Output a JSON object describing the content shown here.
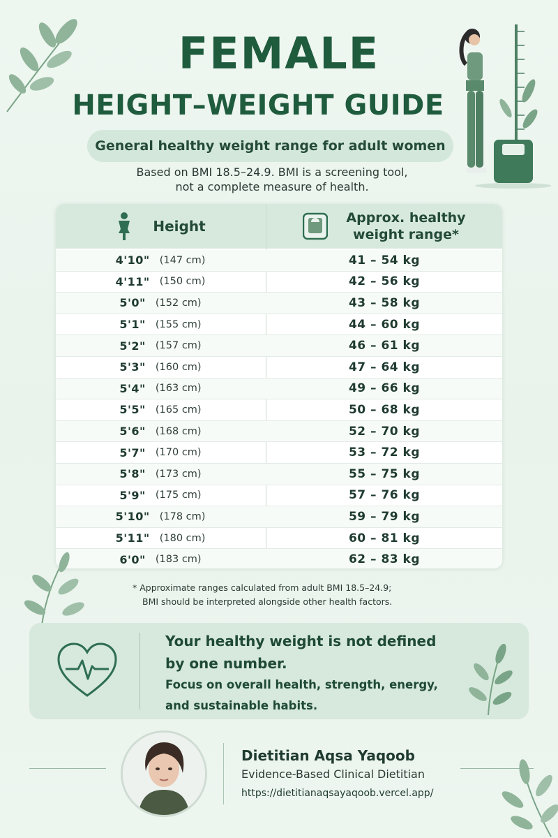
{
  "title_line1": "FEMALE",
  "title_line2": "HEIGHT–WEIGHT GUIDE",
  "subtitle": "General healthy weight range for adult women",
  "note_line1": "Based on BMI 18.5–24.9. BMI is a screening tool,",
  "note_line2": "not a complete measure of health.",
  "table": {
    "col_height": "Height",
    "col_weight_line1": "Approx. healthy",
    "col_weight_line2": "weight range*",
    "rows": [
      {
        "ft": "4'10\"",
        "cm": "(147 cm)",
        "range": "41 – 54 kg"
      },
      {
        "ft": "4'11\"",
        "cm": "(150 cm)",
        "range": "42 – 56 kg"
      },
      {
        "ft": "5'0\"",
        "cm": "(152 cm)",
        "range": "43 – 58 kg"
      },
      {
        "ft": "5'1\"",
        "cm": "(155 cm)",
        "range": "44 – 60 kg"
      },
      {
        "ft": "5'2\"",
        "cm": "(157 cm)",
        "range": "46 – 61 kg"
      },
      {
        "ft": "5'3\"",
        "cm": "(160 cm)",
        "range": "47 – 64 kg"
      },
      {
        "ft": "5'4\"",
        "cm": "(163 cm)",
        "range": "49 – 66 kg"
      },
      {
        "ft": "5'5\"",
        "cm": "(165 cm)",
        "range": "50 – 68 kg"
      },
      {
        "ft": "5'6\"",
        "cm": "(168 cm)",
        "range": "52 – 70 kg"
      },
      {
        "ft": "5'7\"",
        "cm": "(170 cm)",
        "range": "53 – 72 kg"
      },
      {
        "ft": "5'8\"",
        "cm": "(173 cm)",
        "range": "55 – 75 kg"
      },
      {
        "ft": "5'9\"",
        "cm": "(175 cm)",
        "range": "57 – 76 kg"
      },
      {
        "ft": "5'10\"",
        "cm": "(178 cm)",
        "range": "59 – 79 kg"
      },
      {
        "ft": "5'11\"",
        "cm": "(180 cm)",
        "range": "60 – 81 kg"
      },
      {
        "ft": "6'0\"",
        "cm": "(183 cm)",
        "range": "62 – 83 kg"
      }
    ]
  },
  "footnote_line1": "* Approximate ranges calculated from adult BMI 18.5–24.9;",
  "footnote_line2": "BMI should be interpreted alongside other health factors.",
  "message": {
    "head_line1": "Your healthy weight is not defined",
    "head_line2": "by one number.",
    "body_line1": "Focus on overall health, strength, energy,",
    "body_line2": "and sustainable habits."
  },
  "author": {
    "name": "Dietitian Aqsa Yaqoob",
    "role": "Evidence-Based Clinical Dietitian",
    "url": "https://dietitianaqsayaqoob.vercel.app/"
  },
  "colors": {
    "primary": "#1f5b3d",
    "pill": "#d3e8da",
    "leaf": "#6f9a7e",
    "accent": "#2f6e52"
  },
  "icons": [
    "leaf-icon",
    "woman-icon",
    "scale-icon",
    "heart-pulse-icon"
  ]
}
